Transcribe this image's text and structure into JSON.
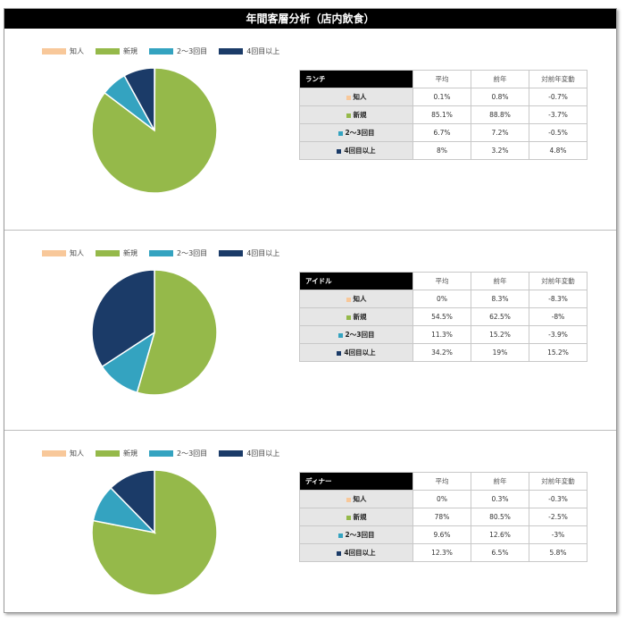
{
  "title": "年間客層分析（店内飲食）",
  "colors": [
    "#f8c89a",
    "#95b94a",
    "#34a3c0",
    "#1b3b68"
  ],
  "legend": [
    "知人",
    "新規",
    "2～3回目",
    "4回目以上"
  ],
  "col_headers": [
    "平均",
    "前年",
    "対前年変動"
  ],
  "chart_data": [
    {
      "type": "pie",
      "name": "ランチ",
      "categories": [
        "知人",
        "新規",
        "2～3回目",
        "4回目以上"
      ],
      "values": [
        0.1,
        85.1,
        6.7,
        8
      ],
      "rows": [
        {
          "label": "知人",
          "avg": "0.1%",
          "prev": "0.8%",
          "change": "-0.7%"
        },
        {
          "label": "新規",
          "avg": "85.1%",
          "prev": "88.8%",
          "change": "-3.7%"
        },
        {
          "label": "2～3回目",
          "avg": "6.7%",
          "prev": "7.2%",
          "change": "-0.5%"
        },
        {
          "label": "4回目以上",
          "avg": "8%",
          "prev": "3.2%",
          "change": "4.8%"
        }
      ]
    },
    {
      "type": "pie",
      "name": "アイドル",
      "categories": [
        "知人",
        "新規",
        "2～3回目",
        "4回目以上"
      ],
      "values": [
        0,
        54.5,
        11.3,
        34.2
      ],
      "rows": [
        {
          "label": "知人",
          "avg": "0%",
          "prev": "8.3%",
          "change": "-8.3%"
        },
        {
          "label": "新規",
          "avg": "54.5%",
          "prev": "62.5%",
          "change": "-8%"
        },
        {
          "label": "2～3回目",
          "avg": "11.3%",
          "prev": "15.2%",
          "change": "-3.9%"
        },
        {
          "label": "4回目以上",
          "avg": "34.2%",
          "prev": "19%",
          "change": "15.2%"
        }
      ]
    },
    {
      "type": "pie",
      "name": "ディナー",
      "categories": [
        "知人",
        "新規",
        "2～3回目",
        "4回目以上"
      ],
      "values": [
        0,
        78,
        9.6,
        12.3
      ],
      "rows": [
        {
          "label": "知人",
          "avg": "0%",
          "prev": "0.3%",
          "change": "-0.3%"
        },
        {
          "label": "新規",
          "avg": "78%",
          "prev": "80.5%",
          "change": "-2.5%"
        },
        {
          "label": "2～3回目",
          "avg": "9.6%",
          "prev": "12.6%",
          "change": "-3%"
        },
        {
          "label": "4回目以上",
          "avg": "12.3%",
          "prev": "6.5%",
          "change": "5.8%"
        }
      ]
    }
  ]
}
